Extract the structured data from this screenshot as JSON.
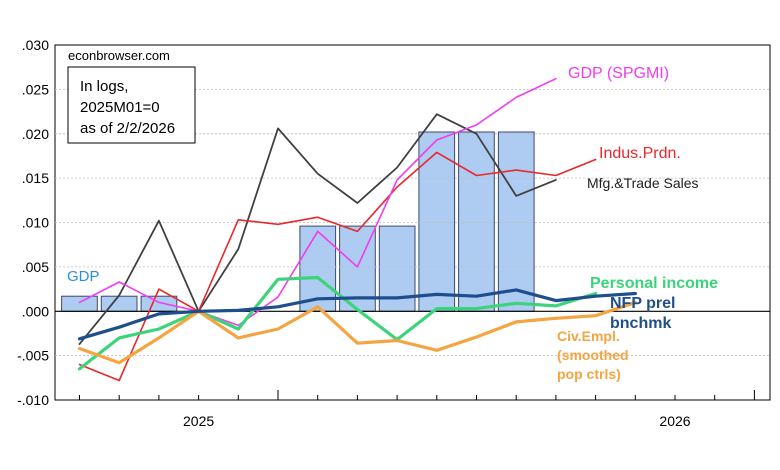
{
  "chart_data": {
    "type": "line",
    "watermark": "econbrowser.com",
    "note_lines": [
      "In logs,",
      "2025M01=0",
      "as of 2/2/2026"
    ],
    "yticks": [
      ".030",
      ".025",
      ".020",
      ".015",
      ".010",
      ".005",
      ".000",
      "-.005",
      "-.010"
    ],
    "xticks": [
      "2025",
      "2026"
    ],
    "ylim": [
      -0.01,
      0.03
    ],
    "x_months": 16,
    "gdp_bars": [
      {
        "start": 0,
        "end": 3,
        "value": 0.0017
      },
      {
        "start": 6,
        "end": 9,
        "value": 0.0096
      },
      {
        "start": 9,
        "end": 12,
        "value": 0.0202
      }
    ],
    "series": [
      {
        "name": "Mfg.&Trade Sales",
        "label": "Mfg.&Trade Sales",
        "color": "#404040",
        "width": 1.8,
        "start": 0,
        "values": [
          -0.0037,
          0.0018,
          0.0102,
          0.0,
          0.007,
          0.0206,
          0.0155,
          0.0122,
          0.0162,
          0.0222,
          0.02,
          0.013,
          0.0148
        ]
      },
      {
        "name": "Indus.Prdn.",
        "label": "Indus.Prdn.",
        "color": "#e8282b",
        "width": 1.6,
        "start": 0,
        "values": [
          -0.006,
          -0.0078,
          0.0025,
          0.0,
          0.0103,
          0.0098,
          0.0106,
          0.009,
          0.014,
          0.0179,
          0.0153,
          0.0159,
          0.0153,
          0.0171
        ]
      },
      {
        "name": "GDP (SPGMI)",
        "label": "GDP (SPGMI)",
        "color": "#f03cf0",
        "width": 1.6,
        "start": 0,
        "values": [
          0.001,
          0.0033,
          0.001,
          0.0,
          -0.0016,
          0.0016,
          0.009,
          0.005,
          0.0148,
          0.0193,
          0.021,
          0.0241,
          0.0262
        ]
      },
      {
        "name": "Personal income",
        "label": "Personal income",
        "color": "#3cd47a",
        "width": 3.2,
        "start": 0,
        "values": [
          -0.0065,
          -0.003,
          -0.002,
          0.0,
          -0.002,
          0.0036,
          0.0038,
          0.0002,
          -0.0032,
          0.0003,
          0.0003,
          0.0009,
          0.0006,
          0.002
        ]
      },
      {
        "name": "Civ.Empl. (smoothed pop ctrls)",
        "label": "Civ.Empl.",
        "label2": "(smoothed",
        "label3": "pop ctrls)",
        "color": "#f4a441",
        "width": 3.2,
        "start": 0,
        "values": [
          -0.0042,
          -0.0058,
          -0.003,
          0.0,
          -0.003,
          -0.002,
          0.0005,
          -0.0036,
          -0.0033,
          -0.0044,
          -0.0029,
          -0.0012,
          -0.0008,
          -0.0005,
          0.001
        ]
      },
      {
        "name": "NFP prel bnchmk",
        "label": "NFP prel",
        "label2": "bnchmk",
        "color": "#1f4e8c",
        "width": 3.2,
        "start": 0,
        "values": [
          -0.0031,
          -0.0018,
          -0.0003,
          0.0,
          0.0001,
          0.0005,
          0.0014,
          0.0015,
          0.0015,
          0.0019,
          0.0017,
          0.0024,
          0.0012,
          0.0017,
          0.002
        ]
      }
    ],
    "gdp_label": "GDP",
    "gdp_label_color": "#2a8ee0"
  }
}
